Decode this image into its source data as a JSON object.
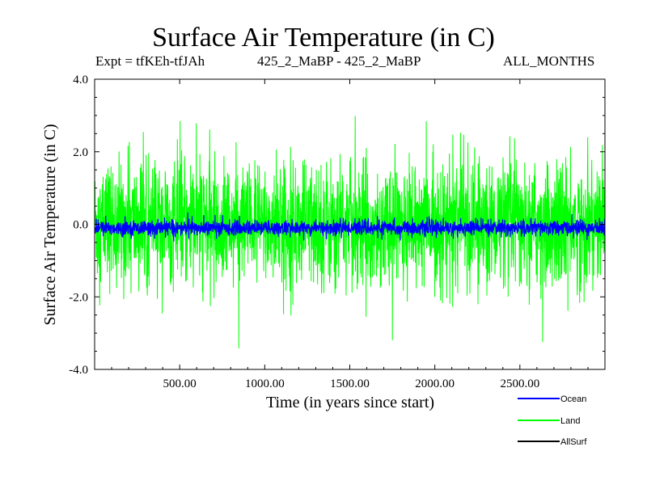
{
  "header": {
    "title": "Surface Air Temperature (in C)",
    "expt": "Expt = tfKEh-tfJAh",
    "runs": "425_2_MaBP - 425_2_MaBP",
    "months": "ALL_MONTHS"
  },
  "chart_data": {
    "type": "line",
    "title": "Surface Air Temperature (in C)",
    "xlabel": "Time (in years since start)",
    "ylabel": "Surface Air Temperature (in C)",
    "xlim": [
      0,
      3000
    ],
    "ylim": [
      -4.0,
      4.0
    ],
    "x_ticks": [
      500,
      1000,
      1500,
      2000,
      2500
    ],
    "x_tick_labels": [
      "500.00",
      "1000.00",
      "1500.00",
      "2000.00",
      "2500.00"
    ],
    "y_ticks": [
      -4.0,
      -2.0,
      0.0,
      2.0,
      4.0
    ],
    "y_tick_labels": [
      "-4.0",
      "-2.0",
      "0.0",
      "2.0",
      "4.0"
    ],
    "grid": false,
    "legend_position": "bottom-right",
    "series": [
      {
        "name": "Land",
        "color": "#00ff00",
        "x_range": [
          0,
          3000
        ],
        "mean": 0.0,
        "typical_range": [
          -2.0,
          2.0
        ],
        "extremes": [
          -3.8,
          3.3
        ]
      },
      {
        "name": "Ocean",
        "color": "#0000ff",
        "x_range": [
          0,
          3000
        ],
        "mean": -0.1,
        "typical_range": [
          -0.3,
          0.2
        ],
        "extremes": [
          -0.5,
          0.4
        ]
      },
      {
        "name": "AllSurf",
        "color": "#000000",
        "x_range": [
          0,
          3000
        ],
        "mean": -0.1,
        "typical_range": [
          -0.3,
          0.2
        ]
      }
    ],
    "legend": [
      {
        "name": "Ocean",
        "color": "#0000ff"
      },
      {
        "name": "Land",
        "color": "#00ff00"
      },
      {
        "name": "AllSurf",
        "color": "#000000"
      }
    ]
  }
}
